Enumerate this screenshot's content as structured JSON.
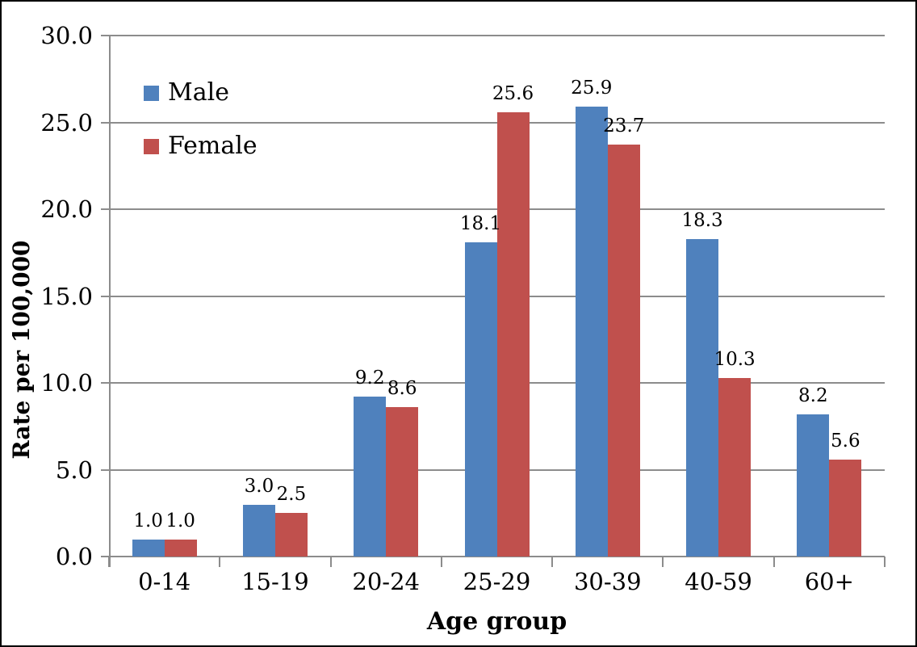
{
  "chart_data": {
    "type": "bar",
    "title": "",
    "xlabel": "Age group",
    "ylabel": "Rate per 100,000",
    "categories": [
      "0-14",
      "15-19",
      "20-24",
      "25-29",
      "30-39",
      "40-59",
      "60+"
    ],
    "series": [
      {
        "name": "Male",
        "color": "#4F81BD",
        "values": [
          1.0,
          3.0,
          9.2,
          18.1,
          25.9,
          18.3,
          8.2
        ],
        "labels": [
          "1.0",
          "3.0",
          "9.2",
          "18.1",
          "25.9",
          "18.3",
          "8.2"
        ]
      },
      {
        "name": "Female",
        "color": "#C0504D",
        "values": [
          1.0,
          2.5,
          8.6,
          25.6,
          23.7,
          10.3,
          5.6
        ],
        "labels": [
          "1.0",
          "2.5",
          "8.6",
          "25.6",
          "23.7",
          "10.3",
          "5.6"
        ]
      }
    ],
    "ylim": [
      0,
      30
    ],
    "ytick_step": 5,
    "ytick_labels": [
      "0.0",
      "5.0",
      "10.0",
      "15.0",
      "20.0",
      "25.0",
      "30.0"
    ],
    "grid": true,
    "legend_position": "top-left-inside",
    "colors": {
      "grid": "#8C8C8C",
      "axis": "#8C8C8C",
      "text": "#000000",
      "background": "#FFFFFF",
      "frame_border": "#000000"
    }
  }
}
